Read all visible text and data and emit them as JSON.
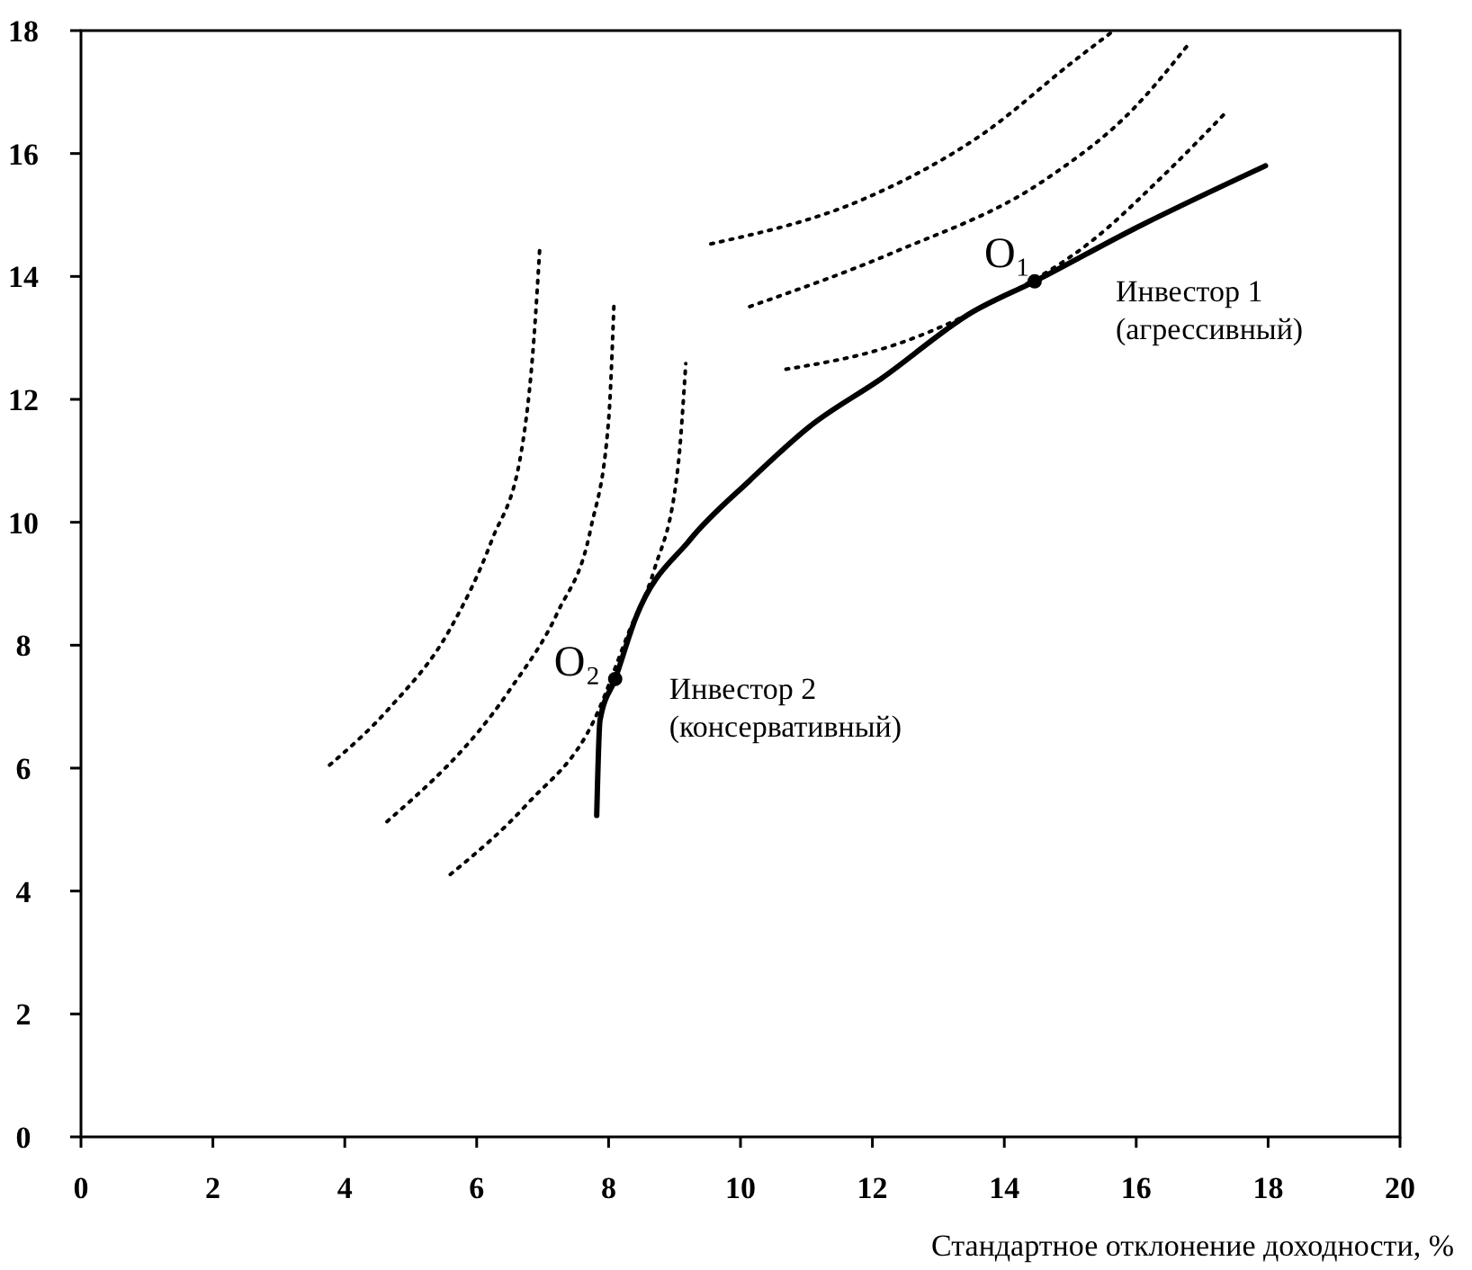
{
  "chart_data": {
    "type": "line",
    "xlabel": "Стандартное отклонение доходности, %",
    "xlim": [
      0,
      20
    ],
    "xticks": [
      0,
      2,
      4,
      6,
      8,
      10,
      12,
      14,
      16,
      18,
      20
    ],
    "ylim": [
      0,
      18
    ],
    "yticks": [
      0,
      2,
      4,
      6,
      8,
      10,
      12,
      14,
      16,
      18
    ],
    "grid": false,
    "series": [
      {
        "color": "#000000",
        "line_style": "solid",
        "x": [
          7.82,
          7.87,
          8.1,
          8.41,
          9.23,
          10.14,
          11.05,
          12.14,
          13.5,
          14.46,
          15.96,
          17.96
        ],
        "values": [
          5.23,
          6.78,
          7.45,
          8.44,
          9.71,
          10.68,
          11.56,
          12.34,
          13.41,
          13.92,
          14.77,
          15.8
        ]
      },
      {
        "color": "#000000",
        "line_style": "dotted",
        "x": [
          3.77,
          4.68,
          5.59,
          6.23,
          6.68,
          6.87,
          6.96
        ],
        "values": [
          6.05,
          6.98,
          8.25,
          9.71,
          11.17,
          13.02,
          14.53
        ]
      },
      {
        "color": "#000000",
        "line_style": "dotted",
        "x": [
          4.64,
          6.5,
          7.23,
          7.73,
          8.0,
          8.08
        ],
        "values": [
          5.13,
          7.27,
          8.54,
          9.9,
          11.66,
          13.51
        ]
      },
      {
        "color": "#000000",
        "line_style": "dotted",
        "x": [
          5.6,
          6.77,
          7.78,
          8.32,
          8.69,
          9.05,
          9.17
        ],
        "values": [
          4.27,
          5.42,
          6.78,
          8.25,
          9.22,
          10.88,
          12.58
        ]
      },
      {
        "color": "#000000",
        "line_style": "dotted",
        "x": [
          9.55,
          11.87,
          13.69,
          15.05,
          15.66
        ],
        "values": [
          14.53,
          15.26,
          16.33,
          17.5,
          18
        ]
      },
      {
        "color": "#000000",
        "line_style": "dotted",
        "x": [
          10.14,
          12.32,
          14.6,
          15.96,
          16.78
        ],
        "values": [
          13.51,
          14.39,
          15.56,
          16.73,
          17.76
        ]
      },
      {
        "color": "#000000",
        "line_style": "dotted",
        "x": [
          10.69,
          12.32,
          13.69,
          15.33,
          16.42,
          17.37
        ],
        "values": [
          12.49,
          12.88,
          13.51,
          14.58,
          15.65,
          16.68
        ]
      },
      {
        "type": "scatter",
        "color": "#000000",
        "marker": "circle",
        "x": [
          14.46,
          8.1
        ],
        "values": [
          13.92,
          7.45
        ]
      }
    ],
    "annotations": [
      "O₁",
      "O₂",
      "Инвестор 1\n(агрессивный)",
      "Инвестор 2\n(консервативный)"
    ]
  }
}
